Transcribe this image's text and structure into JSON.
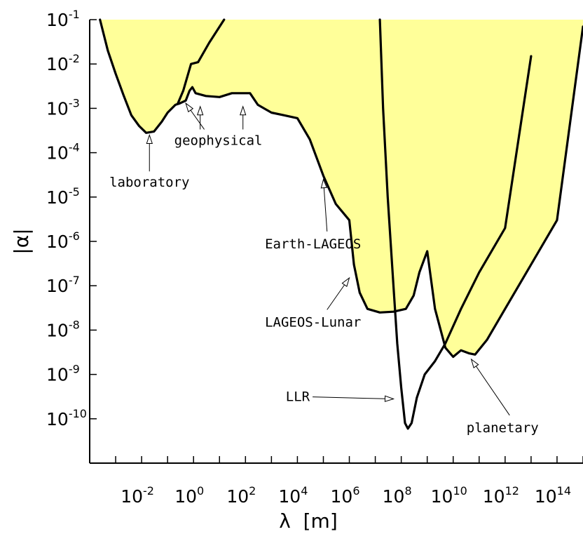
{
  "chart_data": {
    "type": "line",
    "xlabel": "λ  [m]",
    "ylabel": "|α|",
    "x_scale": "log",
    "y_scale": "log",
    "xlim": [
      0.0001,
      1000000000000000.0
    ],
    "ylim": [
      1e-11,
      0.1
    ],
    "x_ticks": [
      {
        "value": 0.01,
        "base": "10",
        "exp": "-2"
      },
      {
        "value": 1,
        "base": "10",
        "exp": "0"
      },
      {
        "value": 100,
        "base": "10",
        "exp": "2"
      },
      {
        "value": 10000,
        "base": "10",
        "exp": "4"
      },
      {
        "value": 1000000,
        "base": "10",
        "exp": "6"
      },
      {
        "value": 100000000,
        "base": "10",
        "exp": "8"
      },
      {
        "value": 10000000000,
        "base": "10",
        "exp": "10"
      },
      {
        "value": 1000000000000,
        "base": "10",
        "exp": "12"
      },
      {
        "value": 100000000000000,
        "base": "10",
        "exp": "14"
      }
    ],
    "y_ticks": [
      {
        "value": 0.1,
        "base": "10",
        "exp": "-1"
      },
      {
        "value": 0.01,
        "base": "10",
        "exp": "-2"
      },
      {
        "value": 0.001,
        "base": "10",
        "exp": "-3"
      },
      {
        "value": 0.0001,
        "base": "10",
        "exp": "-4"
      },
      {
        "value": 1e-05,
        "base": "10",
        "exp": "-5"
      },
      {
        "value": 1e-06,
        "base": "10",
        "exp": "-6"
      },
      {
        "value": 1e-07,
        "base": "10",
        "exp": "-7"
      },
      {
        "value": 1e-08,
        "base": "10",
        "exp": "-8"
      },
      {
        "value": 1e-09,
        "base": "10",
        "exp": "-9"
      },
      {
        "value": 1e-10,
        "base": "10",
        "exp": "-10"
      }
    ],
    "fill_color": "#ffff99",
    "excluded_region": [
      [
        0.00025,
        0.1
      ],
      [
        0.0005,
        0.02
      ],
      [
        0.001,
        0.006
      ],
      [
        0.002,
        0.002
      ],
      [
        0.004,
        0.0007
      ],
      [
        0.008,
        0.0004
      ],
      [
        0.015,
        0.00028
      ],
      [
        0.03,
        0.0003
      ],
      [
        0.06,
        0.0005
      ],
      [
        0.1,
        0.0008
      ],
      [
        0.2,
        0.0012
      ],
      [
        0.3,
        0.0013
      ],
      [
        0.5,
        0.0015
      ],
      [
        0.7,
        0.0025
      ],
      [
        0.9,
        0.003
      ],
      [
        1.2,
        0.0022
      ],
      [
        3,
        0.0019
      ],
      [
        10,
        0.0018
      ],
      [
        30,
        0.0022
      ],
      [
        150,
        0.0022
      ],
      [
        300,
        0.0012
      ],
      [
        1000,
        0.0008
      ],
      [
        3000,
        0.0007
      ],
      [
        10000,
        0.0006
      ],
      [
        30000,
        0.0002
      ],
      [
        100000,
        3e-05
      ],
      [
        300000,
        7e-06
      ],
      [
        1000000,
        3e-06
      ],
      [
        1500000,
        3e-07
      ],
      [
        2500000,
        7e-08
      ],
      [
        5000000,
        3e-08
      ],
      [
        15000000,
        2.5e-08
      ],
      [
        50000000,
        2.6e-08
      ],
      [
        150000000,
        3e-08
      ],
      [
        300000000,
        6e-08
      ],
      [
        500000000,
        2e-07
      ],
      [
        1000000000,
        6e-07
      ],
      [
        2000000000,
        3e-08
      ],
      [
        5000000000,
        4e-09
      ],
      [
        10000000000,
        2.5e-09
      ],
      [
        20000000000,
        3.5e-09
      ],
      [
        40000000000,
        3e-09
      ],
      [
        70000000000,
        2.8e-09
      ],
      [
        200000000000,
        6e-09
      ],
      [
        1000000000000,
        3e-08
      ],
      [
        10000000000000,
        3e-07
      ],
      [
        100000000000000,
        3e-06
      ],
      [
        1000000000000000,
        0.07
      ],
      [
        1000000000000000,
        0.1
      ]
    ],
    "series": [
      {
        "points": [
          [
            0.00025,
            0.1
          ],
          [
            0.0005,
            0.02
          ],
          [
            0.001,
            0.006
          ],
          [
            0.002,
            0.002
          ],
          [
            0.004,
            0.0007
          ],
          [
            0.008,
            0.0004
          ],
          [
            0.015,
            0.00028
          ],
          [
            0.03,
            0.0003
          ],
          [
            0.06,
            0.0005
          ],
          [
            0.1,
            0.0008
          ],
          [
            0.2,
            0.0012
          ],
          [
            0.3,
            0.0013
          ],
          [
            0.5,
            0.0015
          ],
          [
            0.7,
            0.0025
          ],
          [
            0.9,
            0.003
          ],
          [
            1.2,
            0.0022
          ],
          [
            3,
            0.0019
          ],
          [
            10,
            0.0018
          ],
          [
            30,
            0.0022
          ],
          [
            150,
            0.0022
          ],
          [
            300,
            0.0012
          ],
          [
            1000,
            0.0008
          ],
          [
            3000,
            0.0007
          ],
          [
            10000,
            0.0006
          ],
          [
            30000,
            0.0002
          ],
          [
            100000,
            3e-05
          ],
          [
            300000,
            7e-06
          ],
          [
            1000000,
            3e-06
          ],
          [
            1500000,
            3e-07
          ],
          [
            2500000,
            7e-08
          ],
          [
            5000000,
            3e-08
          ],
          [
            15000000,
            2.5e-08
          ],
          [
            50000000,
            2.6e-08
          ],
          [
            150000000,
            3e-08
          ],
          [
            300000000,
            6e-08
          ],
          [
            500000000,
            2e-07
          ],
          [
            1000000000,
            6e-07
          ],
          [
            2000000000,
            3e-08
          ],
          [
            5000000000,
            4e-09
          ],
          [
            10000000000,
            2.5e-09
          ],
          [
            20000000000,
            3.5e-09
          ],
          [
            40000000000,
            3e-09
          ],
          [
            70000000000,
            2.8e-09
          ],
          [
            200000000000,
            6e-09
          ],
          [
            1000000000000,
            3e-08
          ],
          [
            10000000000000,
            3e-07
          ],
          [
            100000000000000,
            3e-06
          ],
          [
            1000000000000000,
            0.07
          ]
        ]
      },
      {
        "points": [
          [
            0.25,
            0.0013
          ],
          [
            0.4,
            0.0025
          ],
          [
            0.8,
            0.01
          ],
          [
            1.5,
            0.011
          ],
          [
            4,
            0.03
          ],
          [
            15,
            0.1
          ]
        ]
      },
      {
        "points": [
          [
            15000000,
            0.1
          ],
          [
            20000000,
            0.001
          ],
          [
            30000000,
            1e-05
          ],
          [
            50000000,
            1e-07
          ],
          [
            70000000,
            5e-09
          ],
          [
            100000000,
            5e-10
          ],
          [
            140000000,
            8e-11
          ],
          [
            180000000,
            6e-11
          ],
          [
            250000000,
            8e-11
          ],
          [
            400000000,
            3e-10
          ],
          [
            800000000,
            1e-09
          ],
          [
            2000000000,
            2e-09
          ],
          [
            5000000000,
            5e-09
          ],
          [
            20000000000,
            3e-08
          ],
          [
            100000000000,
            2e-07
          ],
          [
            1000000000000,
            2e-06
          ],
          [
            10000000000000,
            0.015
          ]
        ]
      }
    ],
    "annotations": [
      {
        "text": "geophysical",
        "label_at": [
          9,
          0.00015
        ],
        "targets": [
          [
            0.5,
            0.0013
          ],
          [
            1.8,
            0.0011
          ],
          [
            80,
            0.0011
          ]
        ],
        "anchor": "middle"
      },
      {
        "text": "laboratory",
        "label_at": [
          0.02,
          1.7e-05
        ],
        "targets": [
          [
            0.02,
            0.00025
          ]
        ],
        "anchor": "middle"
      },
      {
        "text": "Earth-LAGEOS",
        "label_at": [
          40000,
          7e-07
        ],
        "targets": [
          [
            100000,
            2.5e-05
          ]
        ],
        "anchor": "middle"
      },
      {
        "text": "LAGEOS-Lunar",
        "label_at": [
          40000,
          1.2e-08
        ],
        "targets": [
          [
            1000000,
            1.5e-07
          ]
        ],
        "anchor": "middle"
      },
      {
        "text": "LLR",
        "label_at": [
          30000,
          2.5e-10
        ],
        "targets": [
          [
            50000000,
            2.8e-10
          ]
        ],
        "anchor": "end"
      },
      {
        "text": "planetary",
        "label_at": [
          800000000000,
          5e-11
        ],
        "targets": [
          [
            50000000000,
            2.2e-09
          ]
        ],
        "anchor": "middle"
      }
    ]
  }
}
